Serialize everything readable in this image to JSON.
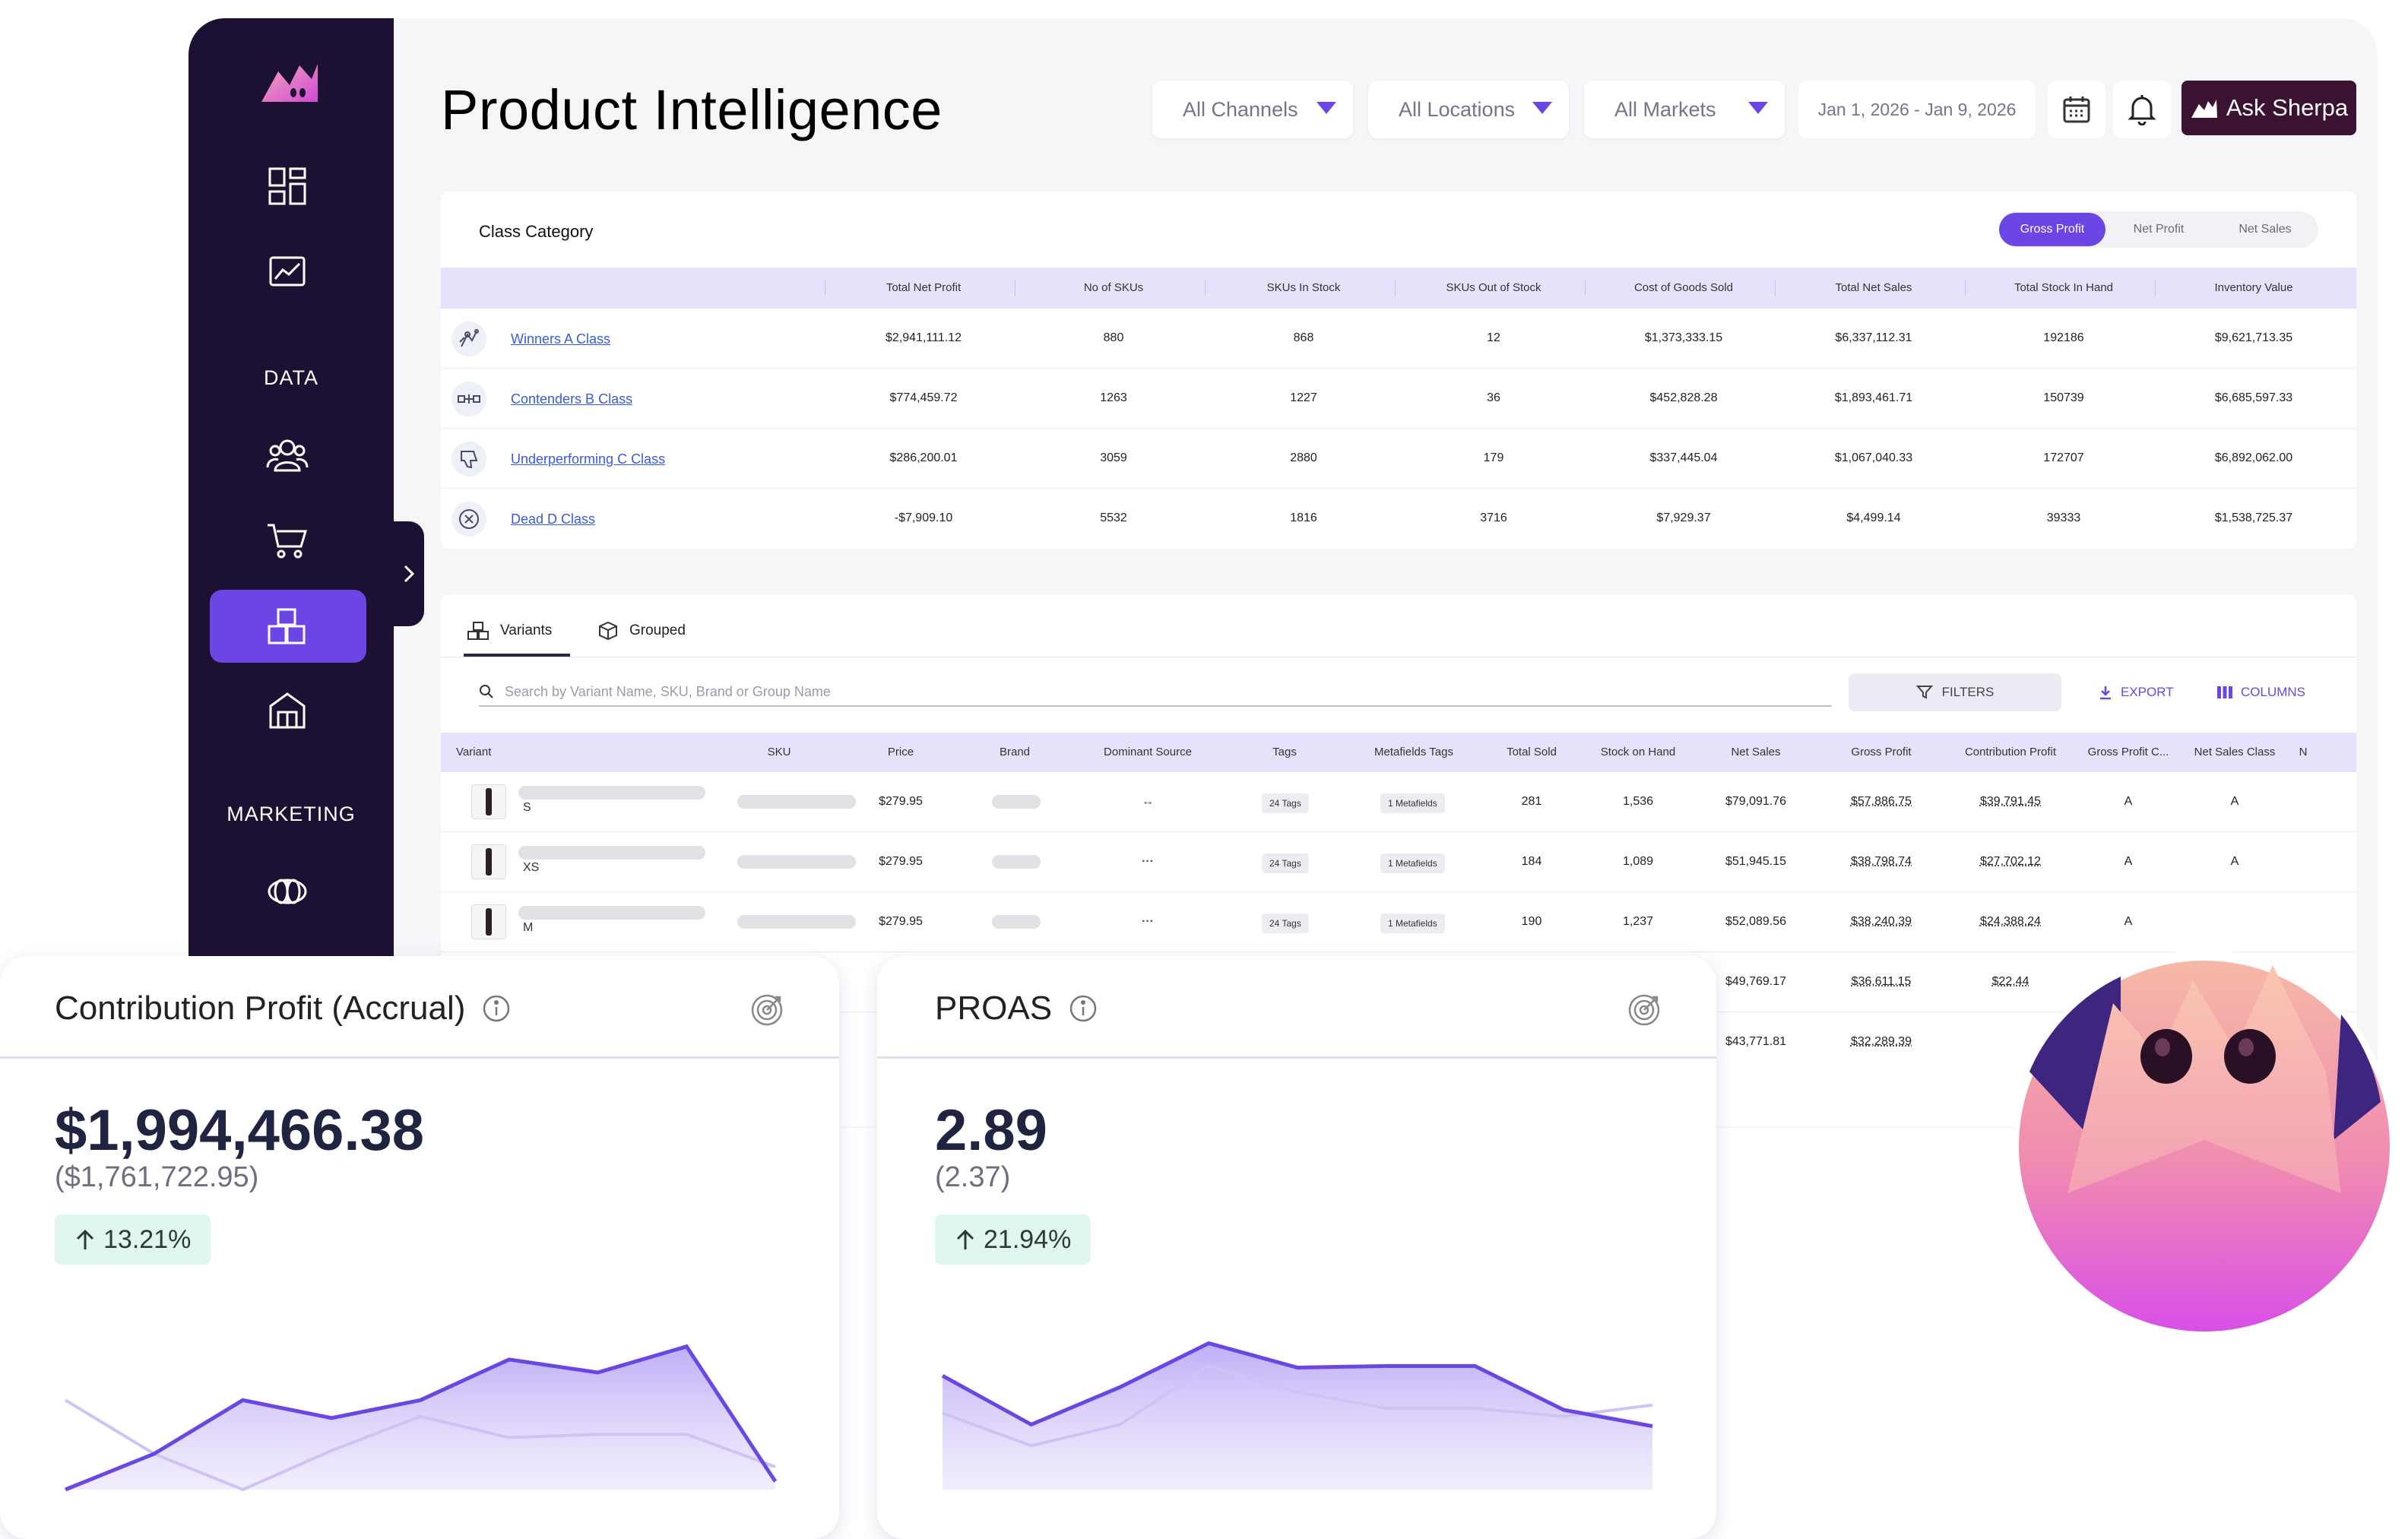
{
  "sidebar": {
    "section_data": "DATA",
    "section_marketing": "MARKETING"
  },
  "header": {
    "title": "Product Intelligence",
    "channels": "All Channels",
    "locations": "All Locations",
    "markets": "All Markets",
    "date_range": "Jan 1, 2026 - Jan 9, 2026",
    "ask_label": "Ask Sherpa"
  },
  "class_category": {
    "title": "Class Category",
    "toggle": [
      "Gross Profit",
      "Net Profit",
      "Net Sales"
    ],
    "toggle_active": "Gross Profit",
    "columns": [
      "Total Net Profit",
      "No of SKUs",
      "SKUs In Stock",
      "SKUs Out of Stock",
      "Cost of Goods Sold",
      "Total Net Sales",
      "Total Stock In Hand",
      "Inventory Value"
    ],
    "rows": [
      {
        "name": "Winners A Class",
        "values": [
          "$2,941,111.12",
          "880",
          "868",
          "12",
          "$1,373,333.15",
          "$6,337,112.31",
          "192186",
          "$9,621,713.35"
        ]
      },
      {
        "name": "Contenders B Class",
        "values": [
          "$774,459.72",
          "1263",
          "1227",
          "36",
          "$452,828.28",
          "$1,893,461.71",
          "150739",
          "$6,685,597.33"
        ]
      },
      {
        "name": "Underperforming C Class",
        "values": [
          "$286,200.01",
          "3059",
          "2880",
          "179",
          "$337,445.04",
          "$1,067,040.33",
          "172707",
          "$6,892,062.00"
        ]
      },
      {
        "name": "Dead D Class",
        "values": [
          "-$7,909.10",
          "5532",
          "1816",
          "3716",
          "$7,929.37",
          "$4,499.14",
          "39333",
          "$1,538,725.37"
        ]
      }
    ]
  },
  "variants": {
    "tabs": [
      "Variants",
      "Grouped"
    ],
    "search_placeholder": "Search by Variant Name, SKU, Brand or Group Name",
    "filters_label": "FILTERS",
    "export_label": "EXPORT",
    "columns_label": "COLUMNS",
    "columns": [
      "Variant",
      "SKU",
      "Price",
      "Brand",
      "Dominant Source",
      "Tags",
      "Metafields Tags",
      "Total Sold",
      "Stock on Hand",
      "Net Sales",
      "Gross Profit",
      "Contribution Profit",
      "Gross Profit C...",
      "Net Sales Class",
      "N"
    ],
    "rows": [
      {
        "size": "S",
        "price": "$279.95",
        "tags": "24 Tags",
        "metafields": "1 Metafields",
        "total_sold": "281",
        "stock": "1,536",
        "net_sales": "$79,091.76",
        "gross_profit": "$57,886.75",
        "contribution": "$39,791.45",
        "gp_class": "A",
        "ns_class": "A"
      },
      {
        "size": "XS",
        "price": "$279.95",
        "tags": "24 Tags",
        "metafields": "1 Metafields",
        "total_sold": "184",
        "stock": "1,089",
        "net_sales": "$51,945.15",
        "gross_profit": "$38,798.74",
        "contribution": "$27,702.12",
        "gp_class": "A",
        "ns_class": "A"
      },
      {
        "size": "M",
        "price": "$279.95",
        "tags": "24 Tags",
        "metafields": "1 Metafields",
        "total_sold": "190",
        "stock": "1,237",
        "net_sales": "$52,089.56",
        "gross_profit": "$38,240.39",
        "contribution": "$24,388.24",
        "gp_class": "A",
        "ns_class": ""
      },
      {
        "net_sales": "$49,769.17",
        "gross_profit": "$36,611.15",
        "contribution": "$22,44"
      },
      {
        "net_sales": "$43,771.81",
        "gross_profit": "$32,289.39",
        "contribution": ""
      }
    ]
  },
  "kpi_contribution": {
    "title": "Contribution Profit (Accrual)",
    "value": "$1,994,466.38",
    "previous": "($1,761,722.95)",
    "change": "13.21%",
    "chart_data": {
      "type": "area",
      "series": [
        {
          "values": [
            0,
            2.2,
            5.5,
            4.4,
            5.5,
            8,
            7.2,
            8.8,
            0.5
          ]
        },
        {
          "values": [
            5.5,
            2.2,
            0,
            2.4,
            4.5,
            3.2,
            3.4,
            3.4,
            1.4
          ]
        }
      ]
    }
  },
  "kpi_proas": {
    "title": "PROAS",
    "value": "2.89",
    "previous": "(2.37)",
    "change": "21.94%",
    "chart_data": {
      "type": "area",
      "series": [
        {
          "values": [
            7,
            4,
            6.3,
            9,
            7.5,
            7.6,
            7.6,
            4.9,
            3.9
          ]
        },
        {
          "values": [
            4.7,
            2.7,
            4,
            7.6,
            6,
            5,
            5,
            4.5,
            5.2
          ]
        }
      ]
    }
  },
  "colors": {
    "sidebar": "#1c1033",
    "accent": "#6b46e5",
    "table_header": "#e7e2fb",
    "ask_button": "#3b1232",
    "badge_bg": "#dff7ee"
  }
}
